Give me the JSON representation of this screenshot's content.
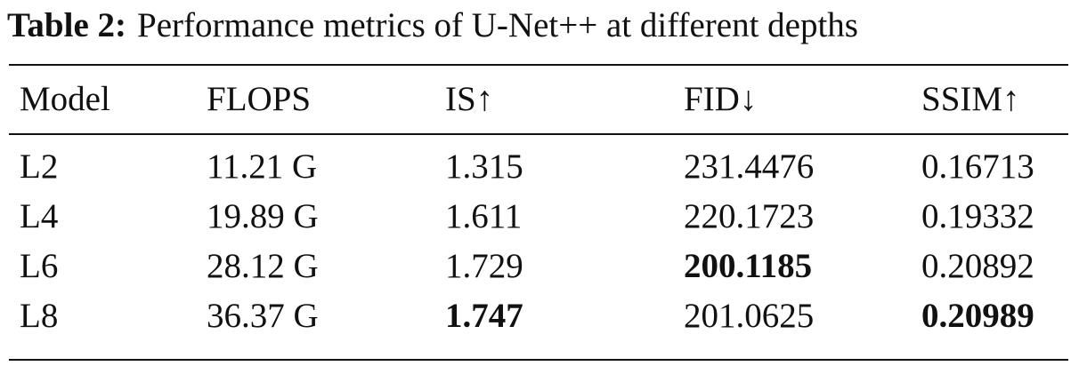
{
  "caption": {
    "label": "Table 2:",
    "text": "Performance metrics of U-Net++ at different depths"
  },
  "table": {
    "header": [
      "Model",
      "FLOPS",
      "IS↑",
      "FID↓",
      "SSIM↑"
    ],
    "rows": [
      [
        "L2",
        "11.21 G",
        "1.315",
        "231.4476",
        "0.16713"
      ],
      [
        "L4",
        "19.89 G",
        "1.611",
        "220.1723",
        "0.19332"
      ],
      [
        "L6",
        "28.12 G",
        "1.729",
        "200.1185",
        "0.20892"
      ],
      [
        "L8",
        "36.37 G",
        "1.747",
        "201.0625",
        "0.20989"
      ]
    ]
  }
}
